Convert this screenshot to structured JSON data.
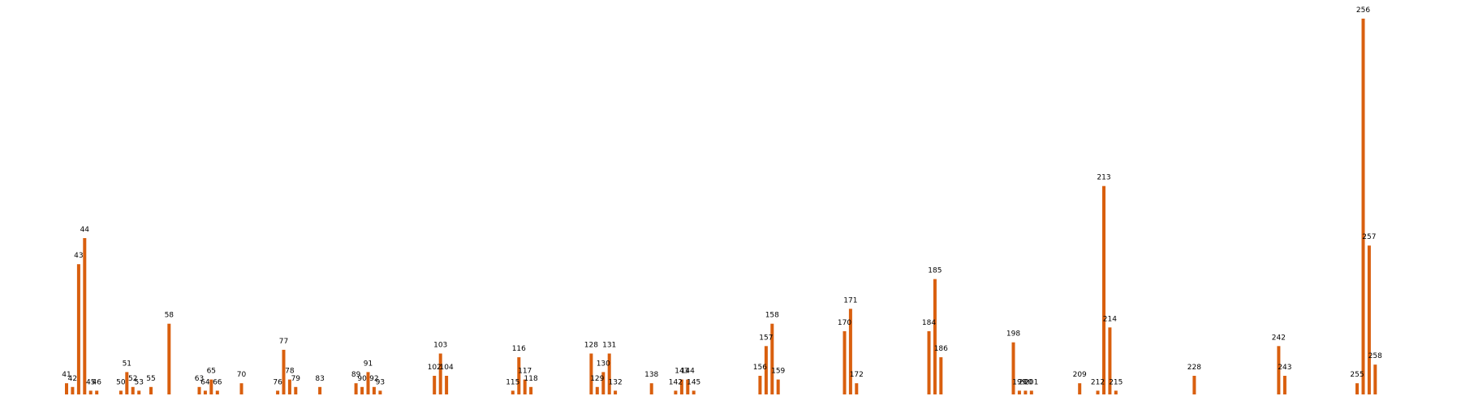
{
  "chart_data": {
    "type": "bar",
    "title": "",
    "xlabel": "",
    "ylabel": "",
    "grid": false,
    "legend": "none",
    "bar_color": "#d95f0e",
    "ylim": [
      0,
      101
    ],
    "x": [
      41,
      42,
      43,
      44,
      45,
      46,
      50,
      51,
      52,
      53,
      55,
      58,
      63,
      64,
      65,
      66,
      70,
      76,
      77,
      78,
      79,
      83,
      89,
      90,
      91,
      92,
      93,
      102,
      103,
      104,
      115,
      116,
      117,
      118,
      128,
      129,
      130,
      131,
      132,
      138,
      142,
      143,
      144,
      145,
      156,
      157,
      158,
      159,
      170,
      171,
      172,
      184,
      185,
      186,
      198,
      199,
      200,
      201,
      209,
      212,
      213,
      214,
      215,
      228,
      242,
      243,
      255,
      256,
      257,
      258
    ],
    "values": [
      3,
      2,
      35,
      42,
      1,
      1,
      1,
      6,
      2,
      1,
      2,
      19,
      2,
      1,
      4,
      1,
      3,
      1,
      12,
      4,
      2,
      2,
      3,
      2,
      6,
      2,
      1,
      5,
      11,
      5,
      1,
      10,
      4,
      2,
      11,
      2,
      6,
      11,
      1,
      3,
      1,
      4,
      4,
      1,
      5,
      13,
      19,
      4,
      17,
      23,
      3,
      17,
      31,
      10,
      14,
      1,
      1,
      1,
      3,
      1,
      56,
      18,
      1,
      5,
      13,
      5,
      3,
      101,
      40,
      8
    ],
    "labels": [
      "41",
      "42",
      "43",
      "44",
      "45",
      "46",
      "50",
      "51",
      "52",
      "53",
      "55",
      "58",
      "63",
      "64",
      "65",
      "66",
      "70",
      "76",
      "77",
      "78",
      "79",
      "83",
      "89",
      "90",
      "91",
      "92",
      "93",
      "102",
      "103",
      "104",
      "115",
      "116",
      "117",
      "118",
      "128",
      "129",
      "130",
      "131",
      "132",
      "138",
      "142",
      "143",
      "144",
      "145",
      "156",
      "157",
      "158",
      "159",
      "170",
      "171",
      "172",
      "184",
      "185",
      "186",
      "198",
      "199",
      "200",
      "201",
      "209",
      "212",
      "213",
      "214",
      "215",
      "228",
      "242",
      "243",
      "255",
      "256",
      "257",
      "258"
    ]
  }
}
